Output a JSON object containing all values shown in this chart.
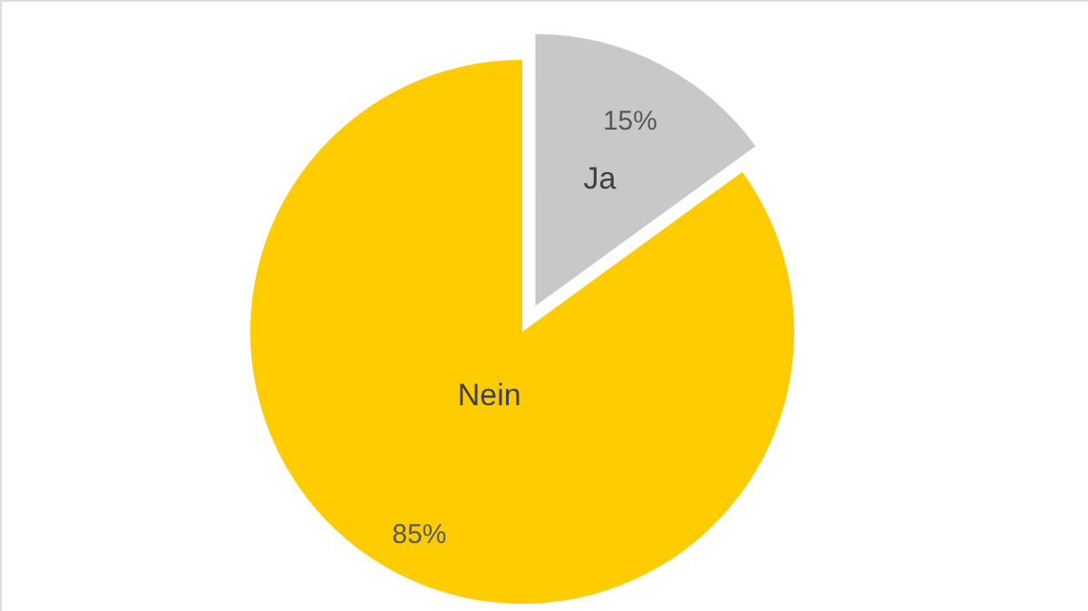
{
  "chart_data": {
    "type": "pie",
    "categories": [
      "Ja",
      "Nein"
    ],
    "values": [
      15,
      85
    ],
    "colors": [
      "#c8c8c8",
      "#ffcc00"
    ],
    "value_labels": [
      "15%",
      "85%"
    ]
  }
}
